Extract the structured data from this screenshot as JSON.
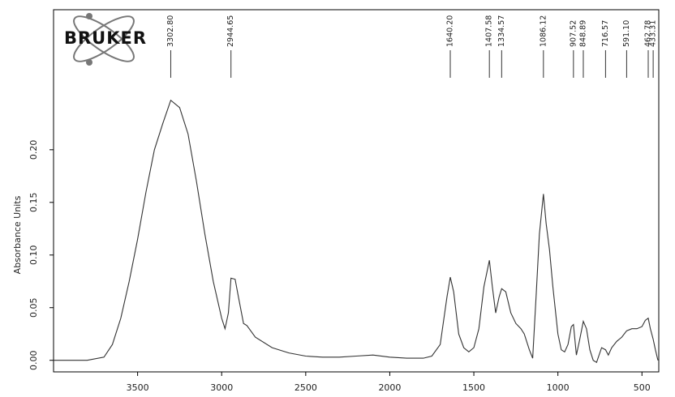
{
  "chart_data": {
    "type": "line",
    "logo_text": "BRUKER",
    "y_label": "Absorbance Units",
    "xlim": [
      4000,
      400
    ],
    "ylim": [
      -0.011,
      0.333
    ],
    "xticks": [
      3500,
      3000,
      2500,
      2000,
      1500,
      1000,
      500
    ],
    "yticks": [
      {
        "value": 0,
        "label": "0.00"
      },
      {
        "value": 0.05,
        "label": "0.05"
      },
      {
        "value": 0.1,
        "label": "0.10"
      },
      {
        "value": 0.15,
        "label": "0.15"
      },
      {
        "value": 0.2,
        "label": "0.20"
      }
    ],
    "color": "#333333",
    "peaks": [
      {
        "value": 3302.8,
        "label": "3302.80"
      },
      {
        "value": 2944.65,
        "label": "2944.65"
      },
      {
        "value": 1640.2,
        "label": "1640.20"
      },
      {
        "value": 1407.58,
        "label": "1407.58"
      },
      {
        "value": 1334.57,
        "label": "1334.57"
      },
      {
        "value": 1086.12,
        "label": "1086.12"
      },
      {
        "value": 907.52,
        "label": "907.52"
      },
      {
        "value": 848.89,
        "label": "848.89"
      },
      {
        "value": 716.57,
        "label": "716.57"
      },
      {
        "value": 591.1,
        "label": "591.10"
      },
      {
        "value": 462.78,
        "label": "462.78"
      },
      {
        "value": 433.31,
        "label": "433.31"
      }
    ],
    "x": [
      4000,
      3800,
      3700,
      3650,
      3600,
      3550,
      3500,
      3450,
      3400,
      3350,
      3302.8,
      3250,
      3200,
      3150,
      3100,
      3050,
      3000,
      2980,
      2960,
      2944.65,
      2920,
      2900,
      2870,
      2850,
      2800,
      2700,
      2600,
      2500,
      2400,
      2300,
      2200,
      2100,
      2000,
      1900,
      1800,
      1750,
      1700,
      1660,
      1640.2,
      1620,
      1590,
      1560,
      1530,
      1500,
      1470,
      1440,
      1407.58,
      1390,
      1370,
      1350,
      1334.57,
      1310,
      1280,
      1250,
      1220,
      1200,
      1170,
      1150,
      1130,
      1110,
      1086.12,
      1070,
      1050,
      1030,
      1000,
      980,
      960,
      940,
      920,
      907.52,
      890,
      870,
      848.89,
      830,
      810,
      790,
      770,
      740,
      716.57,
      700,
      680,
      650,
      620,
      591.1,
      560,
      530,
      500,
      480,
      462.78,
      450,
      433.31,
      420,
      405
    ],
    "values": [
      0,
      0,
      0.003,
      0.015,
      0.04,
      0.075,
      0.115,
      0.16,
      0.2,
      0.225,
      0.247,
      0.24,
      0.215,
      0.17,
      0.12,
      0.075,
      0.04,
      0.03,
      0.045,
      0.078,
      0.077,
      0.06,
      0.035,
      0.033,
      0.022,
      0.012,
      0.007,
      0.004,
      0.003,
      0.003,
      0.004,
      0.005,
      0.003,
      0.002,
      0.002,
      0.004,
      0.015,
      0.06,
      0.079,
      0.065,
      0.025,
      0.012,
      0.008,
      0.012,
      0.03,
      0.07,
      0.095,
      0.07,
      0.045,
      0.06,
      0.068,
      0.065,
      0.045,
      0.035,
      0.03,
      0.025,
      0.01,
      0.002,
      0.06,
      0.12,
      0.158,
      0.13,
      0.105,
      0.07,
      0.025,
      0.01,
      0.008,
      0.015,
      0.032,
      0.034,
      0.005,
      0.02,
      0.037,
      0.03,
      0.01,
      0,
      -0.002,
      0.012,
      0.01,
      0.005,
      0.012,
      0.018,
      0.022,
      0.028,
      0.03,
      0.03,
      0.032,
      0.038,
      0.04,
      0.03,
      0.02,
      0.01,
      0
    ]
  }
}
